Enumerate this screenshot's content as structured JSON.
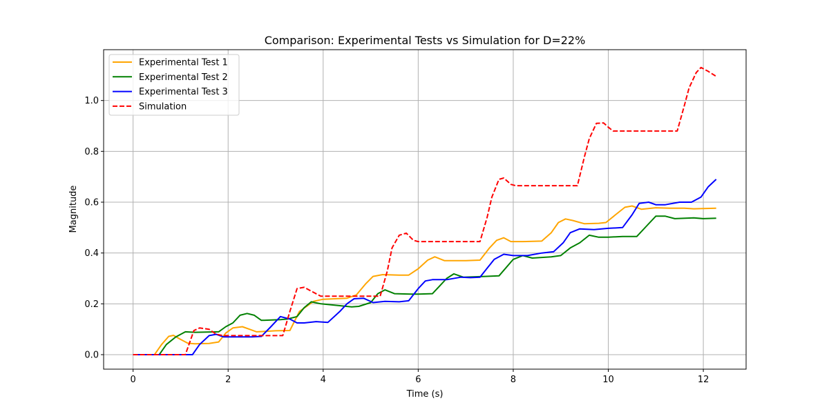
{
  "chart_data": {
    "type": "line",
    "title": "Comparison: Experimental Tests vs Simulation for D=22%",
    "xlabel": "Time (s)",
    "ylabel": "Magnitude",
    "xlim": [
      -0.62,
      12.9
    ],
    "ylim": [
      -0.057,
      1.2
    ],
    "xticks": [
      0,
      2,
      4,
      6,
      8,
      10,
      12
    ],
    "yticks": [
      0.0,
      0.2,
      0.4,
      0.6,
      0.8,
      1.0
    ],
    "xtick_labels": [
      "0",
      "2",
      "4",
      "6",
      "8",
      "10",
      "12"
    ],
    "ytick_labels": [
      "0.0",
      "0.2",
      "0.4",
      "0.6",
      "0.8",
      "1.0"
    ],
    "grid": true,
    "legend_position": "upper-left",
    "series": [
      {
        "name": "Experimental Test 1",
        "color": "#ffa500",
        "dash": "solid",
        "x": [
          0,
          0.45,
          0.6,
          0.75,
          0.85,
          1.0,
          1.15,
          1.3,
          1.6,
          1.8,
          1.95,
          2.1,
          2.3,
          2.45,
          2.6,
          3.0,
          3.3,
          3.5,
          3.8,
          4.0,
          4.5,
          4.7,
          4.9,
          5.05,
          5.25,
          5.6,
          5.8,
          6.0,
          6.2,
          6.35,
          6.55,
          6.8,
          7.0,
          7.3,
          7.5,
          7.65,
          7.8,
          7.95,
          8.2,
          8.6,
          8.8,
          8.95,
          9.1,
          9.25,
          9.5,
          9.8,
          9.95,
          10.15,
          10.35,
          10.5,
          10.7,
          11.0,
          11.3,
          11.6,
          11.8,
          12.0,
          12.27
        ],
        "y": [
          0,
          0,
          0.04,
          0.072,
          0.076,
          0.06,
          0.045,
          0.043,
          0.044,
          0.05,
          0.085,
          0.105,
          0.11,
          0.1,
          0.09,
          0.094,
          0.095,
          0.17,
          0.21,
          0.218,
          0.222,
          0.235,
          0.28,
          0.308,
          0.315,
          0.313,
          0.313,
          0.338,
          0.372,
          0.385,
          0.37,
          0.37,
          0.37,
          0.372,
          0.42,
          0.45,
          0.46,
          0.445,
          0.445,
          0.447,
          0.48,
          0.52,
          0.534,
          0.528,
          0.515,
          0.517,
          0.52,
          0.55,
          0.58,
          0.585,
          0.572,
          0.578,
          0.576,
          0.576,
          0.574,
          0.575,
          0.576
        ]
      },
      {
        "name": "Experimental Test 2",
        "color": "#008000",
        "dash": "solid",
        "x": [
          0,
          0.55,
          0.7,
          0.9,
          1.1,
          1.3,
          1.8,
          1.95,
          2.1,
          2.25,
          2.4,
          2.55,
          2.7,
          3.1,
          3.25,
          3.45,
          3.6,
          3.75,
          3.95,
          4.6,
          4.75,
          5.0,
          5.15,
          5.3,
          5.5,
          5.85,
          6.0,
          6.3,
          6.45,
          6.6,
          6.75,
          6.95,
          7.4,
          7.7,
          8.0,
          8.2,
          8.4,
          8.8,
          9.0,
          9.2,
          9.4,
          9.6,
          9.8,
          10.0,
          10.3,
          10.6,
          10.8,
          11.0,
          11.2,
          11.4,
          11.8,
          12.0,
          12.27
        ],
        "y": [
          0,
          0,
          0.04,
          0.07,
          0.09,
          0.088,
          0.09,
          0.11,
          0.125,
          0.155,
          0.162,
          0.155,
          0.135,
          0.138,
          0.14,
          0.15,
          0.185,
          0.208,
          0.2,
          0.188,
          0.19,
          0.205,
          0.24,
          0.255,
          0.24,
          0.238,
          0.238,
          0.24,
          0.27,
          0.3,
          0.318,
          0.305,
          0.308,
          0.31,
          0.375,
          0.39,
          0.38,
          0.385,
          0.39,
          0.42,
          0.44,
          0.47,
          0.462,
          0.462,
          0.465,
          0.465,
          0.505,
          0.545,
          0.545,
          0.535,
          0.538,
          0.535,
          0.537
        ]
      },
      {
        "name": "Experimental Test 3",
        "color": "#0000ff",
        "dash": "solid",
        "x": [
          0,
          1.25,
          1.4,
          1.6,
          1.75,
          1.9,
          2.1,
          2.5,
          2.7,
          2.9,
          3.1,
          3.3,
          3.45,
          3.6,
          3.85,
          4.1,
          4.35,
          4.5,
          4.65,
          4.85,
          5.05,
          5.3,
          5.6,
          5.8,
          6.0,
          6.15,
          6.3,
          6.6,
          6.9,
          7.1,
          7.3,
          7.45,
          7.6,
          7.8,
          8.0,
          8.3,
          8.6,
          8.85,
          9.05,
          9.2,
          9.4,
          9.7,
          10.0,
          10.3,
          10.5,
          10.65,
          10.85,
          11.0,
          11.2,
          11.5,
          11.75,
          11.95,
          12.1,
          12.27
        ],
        "y": [
          0,
          0,
          0.04,
          0.075,
          0.08,
          0.07,
          0.07,
          0.07,
          0.072,
          0.11,
          0.15,
          0.14,
          0.125,
          0.125,
          0.13,
          0.127,
          0.17,
          0.2,
          0.22,
          0.222,
          0.205,
          0.21,
          0.208,
          0.212,
          0.26,
          0.29,
          0.295,
          0.295,
          0.305,
          0.303,
          0.305,
          0.34,
          0.375,
          0.395,
          0.39,
          0.39,
          0.4,
          0.405,
          0.44,
          0.48,
          0.495,
          0.492,
          0.497,
          0.5,
          0.55,
          0.595,
          0.6,
          0.59,
          0.59,
          0.6,
          0.6,
          0.62,
          0.66,
          0.69
        ]
      },
      {
        "name": "Simulation",
        "color": "#ff0000",
        "dash": "dashed",
        "x": [
          0,
          1.1,
          1.28,
          1.4,
          1.6,
          1.75,
          1.9,
          3.15,
          3.3,
          3.45,
          3.6,
          3.8,
          3.95,
          4.1,
          5.2,
          5.35,
          5.45,
          5.6,
          5.75,
          5.9,
          6.0,
          7.3,
          7.45,
          7.55,
          7.7,
          7.8,
          7.95,
          8.05,
          9.35,
          9.5,
          9.6,
          9.75,
          9.9,
          10.0,
          10.1,
          11.45,
          11.6,
          11.7,
          11.85,
          11.95,
          12.1,
          12.27
        ],
        "y": [
          0,
          0,
          0.095,
          0.105,
          0.1,
          0.08,
          0.075,
          0.075,
          0.17,
          0.26,
          0.265,
          0.245,
          0.23,
          0.23,
          0.23,
          0.33,
          0.42,
          0.47,
          0.478,
          0.45,
          0.445,
          0.445,
          0.54,
          0.62,
          0.69,
          0.695,
          0.67,
          0.665,
          0.665,
          0.78,
          0.85,
          0.91,
          0.912,
          0.895,
          0.88,
          0.88,
          0.98,
          1.05,
          1.11,
          1.13,
          1.115,
          1.095
        ]
      }
    ]
  }
}
